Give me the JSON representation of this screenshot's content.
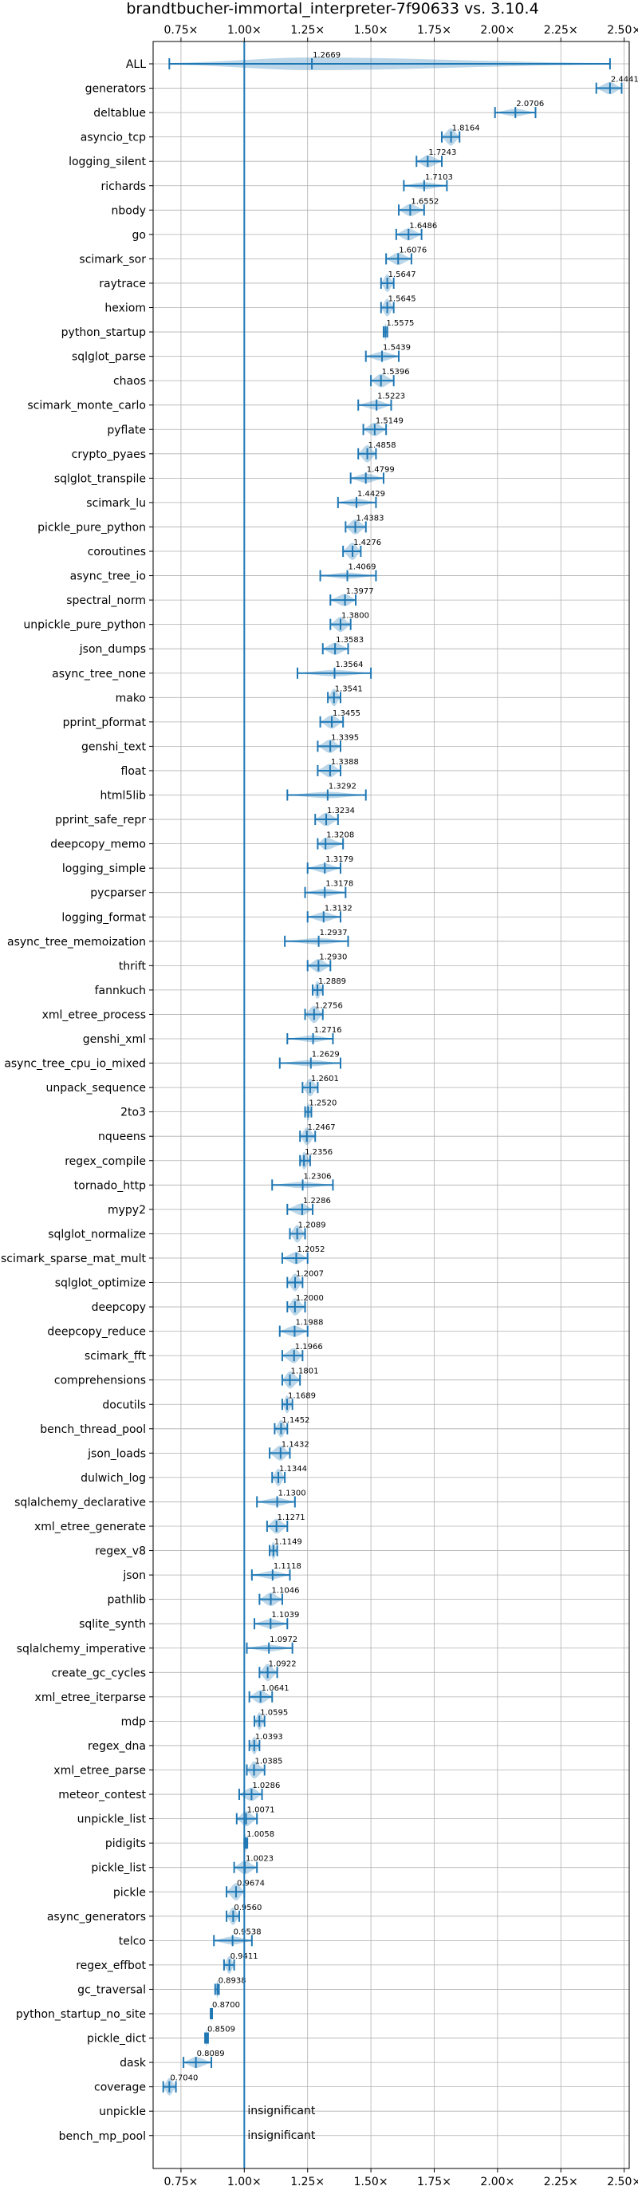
{
  "chart_data": {
    "type": "violin",
    "title": "brandtbucher-immortal_interpreter-7f90633 vs. 3.10.4",
    "xlabel": "",
    "ylabel": "",
    "xlim": [
      0.64,
      2.52
    ],
    "x_ticks": [
      0.75,
      1.0,
      1.25,
      1.5,
      1.75,
      2.0,
      2.25,
      2.5
    ],
    "x_tick_labels": [
      "0.75×",
      "1.00×",
      "1.25×",
      "1.50×",
      "1.75×",
      "2.00×",
      "2.25×",
      "2.50×"
    ],
    "reference_line": 1.0,
    "grid": true,
    "color": "#1f77b4",
    "insignificant_label": "insignificant",
    "benchmarks": [
      {
        "name": "ALL",
        "median": 1.2669,
        "min": 0.704,
        "max": 2.4441,
        "label": "1.2669"
      },
      {
        "name": "generators",
        "median": 2.4441,
        "min": 2.39,
        "max": 2.49,
        "label": "2.4441"
      },
      {
        "name": "deltablue",
        "median": 2.0706,
        "min": 1.99,
        "max": 2.15,
        "label": "2.0706"
      },
      {
        "name": "asyncio_tcp",
        "median": 1.8164,
        "min": 1.78,
        "max": 1.85,
        "label": "1.8164"
      },
      {
        "name": "logging_silent",
        "median": 1.7243,
        "min": 1.68,
        "max": 1.78,
        "label": "1.7243"
      },
      {
        "name": "richards",
        "median": 1.7103,
        "min": 1.63,
        "max": 1.8,
        "label": "1.7103"
      },
      {
        "name": "nbody",
        "median": 1.6552,
        "min": 1.61,
        "max": 1.71,
        "label": "1.6552"
      },
      {
        "name": "go",
        "median": 1.6486,
        "min": 1.6,
        "max": 1.7,
        "label": "1.6486"
      },
      {
        "name": "scimark_sor",
        "median": 1.6076,
        "min": 1.56,
        "max": 1.66,
        "label": "1.6076"
      },
      {
        "name": "raytrace",
        "median": 1.5647,
        "min": 1.54,
        "max": 1.59,
        "label": "1.5647"
      },
      {
        "name": "hexiom",
        "median": 1.5645,
        "min": 1.54,
        "max": 1.59,
        "label": "1.5645"
      },
      {
        "name": "python_startup",
        "median": 1.5575,
        "min": 1.55,
        "max": 1.565,
        "label": "1.5575"
      },
      {
        "name": "sqlglot_parse",
        "median": 1.5439,
        "min": 1.48,
        "max": 1.61,
        "label": "1.5439"
      },
      {
        "name": "chaos",
        "median": 1.5396,
        "min": 1.5,
        "max": 1.59,
        "label": "1.5396"
      },
      {
        "name": "scimark_monte_carlo",
        "median": 1.5223,
        "min": 1.45,
        "max": 1.58,
        "label": "1.5223"
      },
      {
        "name": "pyflate",
        "median": 1.5149,
        "min": 1.47,
        "max": 1.56,
        "label": "1.5149"
      },
      {
        "name": "crypto_pyaes",
        "median": 1.4858,
        "min": 1.45,
        "max": 1.52,
        "label": "1.4858"
      },
      {
        "name": "sqlglot_transpile",
        "median": 1.4799,
        "min": 1.42,
        "max": 1.55,
        "label": "1.4799"
      },
      {
        "name": "scimark_lu",
        "median": 1.4429,
        "min": 1.37,
        "max": 1.52,
        "label": "1.4429"
      },
      {
        "name": "pickle_pure_python",
        "median": 1.4383,
        "min": 1.4,
        "max": 1.48,
        "label": "1.4383"
      },
      {
        "name": "coroutines",
        "median": 1.4276,
        "min": 1.39,
        "max": 1.46,
        "label": "1.4276"
      },
      {
        "name": "async_tree_io",
        "median": 1.4069,
        "min": 1.3,
        "max": 1.52,
        "label": "1.4069"
      },
      {
        "name": "spectral_norm",
        "median": 1.3977,
        "min": 1.34,
        "max": 1.44,
        "label": "1.3977"
      },
      {
        "name": "unpickle_pure_python",
        "median": 1.38,
        "min": 1.34,
        "max": 1.42,
        "label": "1.3800"
      },
      {
        "name": "json_dumps",
        "median": 1.3583,
        "min": 1.31,
        "max": 1.41,
        "label": "1.3583"
      },
      {
        "name": "async_tree_none",
        "median": 1.3564,
        "min": 1.21,
        "max": 1.5,
        "label": "1.3564"
      },
      {
        "name": "mako",
        "median": 1.3541,
        "min": 1.33,
        "max": 1.38,
        "label": "1.3541"
      },
      {
        "name": "pprint_pformat",
        "median": 1.3455,
        "min": 1.3,
        "max": 1.39,
        "label": "1.3455"
      },
      {
        "name": "genshi_text",
        "median": 1.3395,
        "min": 1.29,
        "max": 1.38,
        "label": "1.3395"
      },
      {
        "name": "float",
        "median": 1.3388,
        "min": 1.29,
        "max": 1.38,
        "label": "1.3388"
      },
      {
        "name": "html5lib",
        "median": 1.3292,
        "min": 1.17,
        "max": 1.48,
        "label": "1.3292"
      },
      {
        "name": "pprint_safe_repr",
        "median": 1.3234,
        "min": 1.28,
        "max": 1.37,
        "label": "1.3234"
      },
      {
        "name": "deepcopy_memo",
        "median": 1.3208,
        "min": 1.29,
        "max": 1.39,
        "label": "1.3208"
      },
      {
        "name": "logging_simple",
        "median": 1.3179,
        "min": 1.25,
        "max": 1.38,
        "label": "1.3179"
      },
      {
        "name": "pycparser",
        "median": 1.3178,
        "min": 1.24,
        "max": 1.4,
        "label": "1.3178"
      },
      {
        "name": "logging_format",
        "median": 1.3132,
        "min": 1.25,
        "max": 1.38,
        "label": "1.3132"
      },
      {
        "name": "async_tree_memoization",
        "median": 1.2937,
        "min": 1.16,
        "max": 1.41,
        "label": "1.2937"
      },
      {
        "name": "thrift",
        "median": 1.293,
        "min": 1.25,
        "max": 1.34,
        "label": "1.2930"
      },
      {
        "name": "fannkuch",
        "median": 1.2889,
        "min": 1.27,
        "max": 1.31,
        "label": "1.2889"
      },
      {
        "name": "xml_etree_process",
        "median": 1.2756,
        "min": 1.24,
        "max": 1.31,
        "label": "1.2756"
      },
      {
        "name": "genshi_xml",
        "median": 1.2716,
        "min": 1.17,
        "max": 1.35,
        "label": "1.2716"
      },
      {
        "name": "async_tree_cpu_io_mixed",
        "median": 1.2629,
        "min": 1.14,
        "max": 1.38,
        "label": "1.2629"
      },
      {
        "name": "unpack_sequence",
        "median": 1.2601,
        "min": 1.23,
        "max": 1.29,
        "label": "1.2601"
      },
      {
        "name": "2to3",
        "median": 1.252,
        "min": 1.24,
        "max": 1.265,
        "label": "1.2520"
      },
      {
        "name": "nqueens",
        "median": 1.2467,
        "min": 1.22,
        "max": 1.28,
        "label": "1.2467"
      },
      {
        "name": "regex_compile",
        "median": 1.2356,
        "min": 1.22,
        "max": 1.26,
        "label": "1.2356"
      },
      {
        "name": "tornado_http",
        "median": 1.2306,
        "min": 1.11,
        "max": 1.35,
        "label": "1.2306"
      },
      {
        "name": "mypy2",
        "median": 1.2286,
        "min": 1.17,
        "max": 1.27,
        "label": "1.2286"
      },
      {
        "name": "sqlglot_normalize",
        "median": 1.2089,
        "min": 1.18,
        "max": 1.24,
        "label": "1.2089"
      },
      {
        "name": "scimark_sparse_mat_mult",
        "median": 1.2052,
        "min": 1.15,
        "max": 1.25,
        "label": "1.2052"
      },
      {
        "name": "sqlglot_optimize",
        "median": 1.2007,
        "min": 1.17,
        "max": 1.23,
        "label": "1.2007"
      },
      {
        "name": "deepcopy",
        "median": 1.2,
        "min": 1.17,
        "max": 1.24,
        "label": "1.2000"
      },
      {
        "name": "deepcopy_reduce",
        "median": 1.1988,
        "min": 1.14,
        "max": 1.25,
        "label": "1.1988"
      },
      {
        "name": "scimark_fft",
        "median": 1.1966,
        "min": 1.15,
        "max": 1.23,
        "label": "1.1966"
      },
      {
        "name": "comprehensions",
        "median": 1.1801,
        "min": 1.15,
        "max": 1.22,
        "label": "1.1801"
      },
      {
        "name": "docutils",
        "median": 1.1689,
        "min": 1.15,
        "max": 1.19,
        "label": "1.1689"
      },
      {
        "name": "bench_thread_pool",
        "median": 1.1452,
        "min": 1.12,
        "max": 1.17,
        "label": "1.1452"
      },
      {
        "name": "json_loads",
        "median": 1.1432,
        "min": 1.1,
        "max": 1.18,
        "label": "1.1432"
      },
      {
        "name": "dulwich_log",
        "median": 1.1344,
        "min": 1.11,
        "max": 1.16,
        "label": "1.1344"
      },
      {
        "name": "sqlalchemy_declarative",
        "median": 1.13,
        "min": 1.05,
        "max": 1.2,
        "label": "1.1300"
      },
      {
        "name": "xml_etree_generate",
        "median": 1.1271,
        "min": 1.09,
        "max": 1.17,
        "label": "1.1271"
      },
      {
        "name": "regex_v8",
        "median": 1.1149,
        "min": 1.1,
        "max": 1.13,
        "label": "1.1149"
      },
      {
        "name": "json",
        "median": 1.1118,
        "min": 1.03,
        "max": 1.18,
        "label": "1.1118"
      },
      {
        "name": "pathlib",
        "median": 1.1046,
        "min": 1.06,
        "max": 1.15,
        "label": "1.1046"
      },
      {
        "name": "sqlite_synth",
        "median": 1.1039,
        "min": 1.04,
        "max": 1.17,
        "label": "1.1039"
      },
      {
        "name": "sqlalchemy_imperative",
        "median": 1.0972,
        "min": 1.01,
        "max": 1.19,
        "label": "1.0972"
      },
      {
        "name": "create_gc_cycles",
        "median": 1.0922,
        "min": 1.06,
        "max": 1.13,
        "label": "1.0922"
      },
      {
        "name": "xml_etree_iterparse",
        "median": 1.0641,
        "min": 1.02,
        "max": 1.11,
        "label": "1.0641"
      },
      {
        "name": "mdp",
        "median": 1.0595,
        "min": 1.04,
        "max": 1.08,
        "label": "1.0595"
      },
      {
        "name": "regex_dna",
        "median": 1.0393,
        "min": 1.02,
        "max": 1.06,
        "label": "1.0393"
      },
      {
        "name": "xml_etree_parse",
        "median": 1.0385,
        "min": 1.01,
        "max": 1.08,
        "label": "1.0385"
      },
      {
        "name": "meteor_contest",
        "median": 1.0286,
        "min": 0.98,
        "max": 1.07,
        "label": "1.0286"
      },
      {
        "name": "unpickle_list",
        "median": 1.0071,
        "min": 0.97,
        "max": 1.05,
        "label": "1.0071"
      },
      {
        "name": "pidigits",
        "median": 1.0058,
        "min": 1.0,
        "max": 1.012,
        "label": "1.0058"
      },
      {
        "name": "pickle_list",
        "median": 1.0023,
        "min": 0.96,
        "max": 1.05,
        "label": "1.0023"
      },
      {
        "name": "pickle",
        "median": 0.9674,
        "min": 0.93,
        "max": 1.0,
        "label": "0.9674"
      },
      {
        "name": "async_generators",
        "median": 0.956,
        "min": 0.93,
        "max": 0.98,
        "label": "0.9560"
      },
      {
        "name": "telco",
        "median": 0.9538,
        "min": 0.88,
        "max": 1.03,
        "label": "0.9538"
      },
      {
        "name": "regex_effbot",
        "median": 0.9411,
        "min": 0.92,
        "max": 0.96,
        "label": "0.9411"
      },
      {
        "name": "gc_traversal",
        "median": 0.8938,
        "min": 0.885,
        "max": 0.9,
        "label": "0.8938"
      },
      {
        "name": "python_startup_no_site",
        "median": 0.87,
        "min": 0.867,
        "max": 0.873,
        "label": "0.8700"
      },
      {
        "name": "pickle_dict",
        "median": 0.8509,
        "min": 0.845,
        "max": 0.857,
        "label": "0.8509"
      },
      {
        "name": "dask",
        "median": 0.8089,
        "min": 0.76,
        "max": 0.87,
        "label": "0.8089"
      },
      {
        "name": "coverage",
        "median": 0.704,
        "min": 0.68,
        "max": 0.73,
        "label": "0.7040"
      },
      {
        "name": "unpickle",
        "insignificant": true
      },
      {
        "name": "bench_mp_pool",
        "insignificant": true
      }
    ]
  }
}
